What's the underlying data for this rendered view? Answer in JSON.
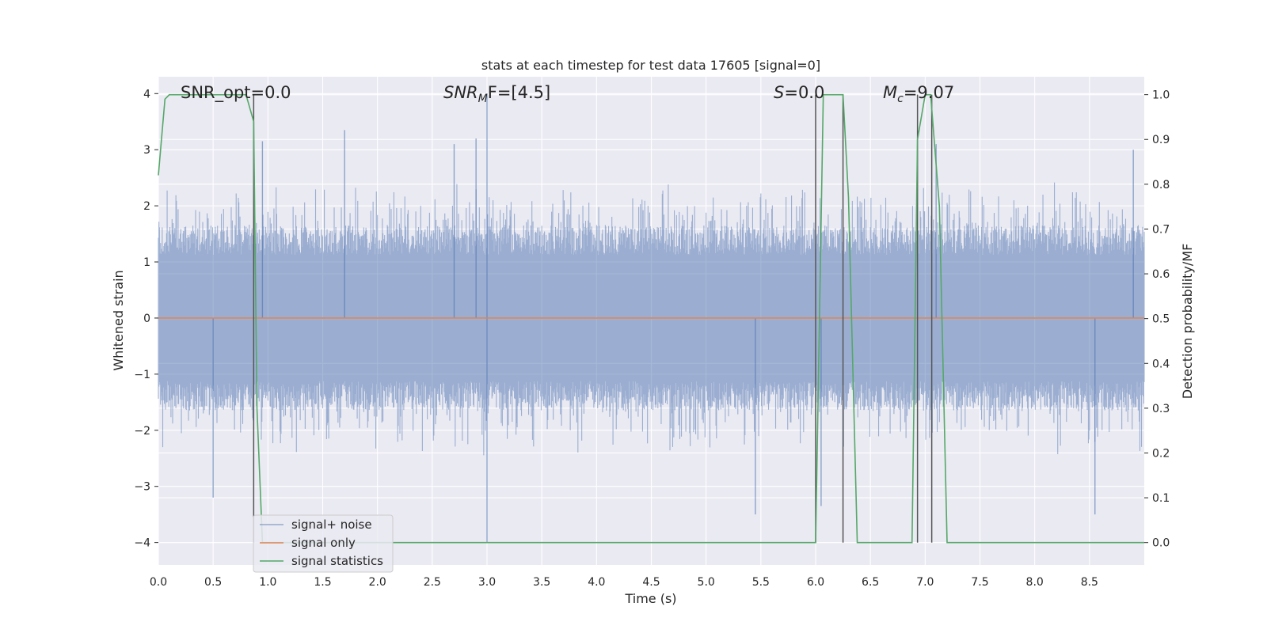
{
  "chart_data": {
    "type": "line",
    "title": "stats at each timestep for test data 17605 [signal=0]",
    "xlabel": "Time (s)",
    "ylabel_left": "Whitened strain",
    "ylabel_right": "Detection probability/MF",
    "xlim": [
      0.0,
      9.0
    ],
    "ylim_left": [
      -4.4,
      4.3
    ],
    "ylim_right": [
      -0.05,
      1.04
    ],
    "x_ticks": [
      "0.0",
      "0.5",
      "1.0",
      "1.5",
      "2.0",
      "2.5",
      "3.0",
      "3.5",
      "4.0",
      "4.5",
      "5.0",
      "5.5",
      "6.0",
      "6.5",
      "7.0",
      "7.5",
      "8.0",
      "8.5"
    ],
    "y_ticks_left": [
      "−4",
      "−3",
      "−2",
      "−1",
      "0",
      "1",
      "2",
      "3",
      "4"
    ],
    "y_ticks_right": [
      "0.0",
      "0.1",
      "0.2",
      "0.3",
      "0.4",
      "0.5",
      "0.6",
      "0.7",
      "0.8",
      "0.9",
      "1.0"
    ],
    "grid": true,
    "legend_position": "lower-left",
    "colors": {
      "background": "#eaeaf2",
      "grid": "#ffffff",
      "noise": "#4c72b0",
      "signal": "#dd8452",
      "stats": "#55a868",
      "marker": "#555555"
    },
    "annotations": {
      "snr_opt": "SNR_opt=0.0",
      "snr_mf_prefix": "SNR",
      "snr_mf_sub": "M",
      "snr_mf_suffix": "F=[4.5]",
      "s_label": "S",
      "s_value": "=0.0",
      "mc_label": "M",
      "mc_sub": "c",
      "mc_value": "=9.07"
    },
    "series": [
      {
        "name": "signal+ noise",
        "axis": "left",
        "description_envelope": "whitened noise ~ ±1.5 with spikes to about ±3.5",
        "envelope_abs": 1.5,
        "spike_peaks": [
          {
            "x": 3.0,
            "y": 4.0
          },
          {
            "x": 1.7,
            "y": 3.35
          },
          {
            "x": 2.7,
            "y": 3.1
          },
          {
            "x": 0.95,
            "y": 3.15
          },
          {
            "x": 2.9,
            "y": 3.2
          },
          {
            "x": 7.1,
            "y": 3.1
          },
          {
            "x": 8.9,
            "y": 3.0
          },
          {
            "x": 3.0,
            "y": -4.0
          },
          {
            "x": 5.45,
            "y": -3.5
          },
          {
            "x": 0.5,
            "y": -3.2
          },
          {
            "x": 6.05,
            "y": -3.35
          },
          {
            "x": 8.55,
            "y": -3.5
          }
        ]
      },
      {
        "name": "signal only",
        "axis": "left",
        "x": [
          0.0,
          9.0
        ],
        "y": [
          0.0,
          0.0
        ]
      },
      {
        "name": "signal statistics",
        "axis": "right",
        "x": [
          0.0,
          0.06,
          0.1,
          0.3,
          0.5,
          0.8,
          0.87,
          0.9,
          0.95,
          1.0,
          2.0,
          3.0,
          4.0,
          5.0,
          5.9,
          6.0,
          6.07,
          6.25,
          6.3,
          6.38,
          6.8,
          6.88,
          6.93,
          7.0,
          7.05,
          7.13,
          7.2,
          7.25,
          8.0,
          9.0
        ],
        "y": [
          0.82,
          0.99,
          1.0,
          1.0,
          1.0,
          1.0,
          0.94,
          0.3,
          0.0,
          0.0,
          0.0,
          0.0,
          0.0,
          0.0,
          0.0,
          0.0,
          1.0,
          1.0,
          0.77,
          0.0,
          0.0,
          0.0,
          0.9,
          1.0,
          1.0,
          0.75,
          0.0,
          0.0,
          0.0,
          0.0
        ]
      }
    ],
    "marker_lines": [
      {
        "x": 0.87,
        "from": 0.0,
        "to": 1.0
      },
      {
        "x": 6.0,
        "from": 0.0,
        "to": 1.0
      },
      {
        "x": 6.25,
        "from": 0.0,
        "to": 1.0
      },
      {
        "x": 6.93,
        "from": 0.0,
        "to": 1.0
      },
      {
        "x": 7.06,
        "from": 0.0,
        "to": 1.0
      }
    ]
  }
}
